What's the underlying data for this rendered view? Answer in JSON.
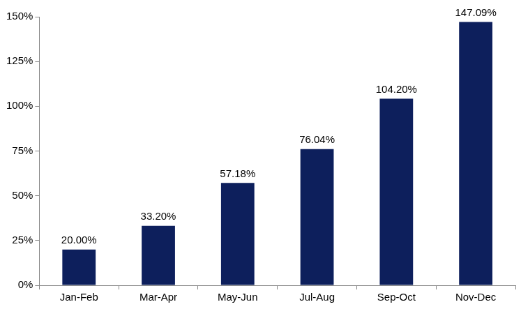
{
  "chart_data": {
    "type": "bar",
    "categories": [
      "Jan-Feb",
      "Mar-Apr",
      "May-Jun",
      "Jul-Aug",
      "Sep-Oct",
      "Nov-Dec"
    ],
    "values": [
      20.0,
      33.2,
      57.18,
      76.04,
      104.2,
      147.09
    ],
    "value_labels": [
      "20.00%",
      "33.20%",
      "57.18%",
      "76.04%",
      "104.20%",
      "147.09%"
    ],
    "data_labels": true,
    "color": "#0d1f5c",
    "ylim": [
      0,
      150
    ],
    "yticks": [
      {
        "value": 0,
        "label": "0%"
      },
      {
        "value": 25,
        "label": "25%"
      },
      {
        "value": 50,
        "label": "50%"
      },
      {
        "value": 75,
        "label": "75%"
      },
      {
        "value": 100,
        "label": "100%"
      },
      {
        "value": 125,
        "label": "125%"
      },
      {
        "value": 150,
        "label": "150%"
      }
    ],
    "grid": false
  }
}
